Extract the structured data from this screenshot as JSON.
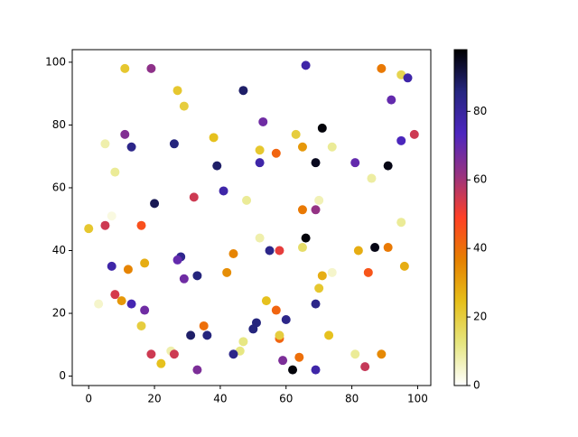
{
  "chart_data": {
    "type": "scatter",
    "x": [
      11,
      19,
      66,
      89,
      95,
      97,
      27,
      47,
      29,
      92,
      53,
      71,
      11,
      38,
      63,
      99,
      5,
      13,
      26,
      74,
      95,
      65,
      52,
      57,
      69,
      52,
      81,
      91,
      39,
      8,
      86,
      41,
      32,
      48,
      70,
      20,
      65,
      69,
      7,
      95,
      0,
      5,
      16,
      66,
      52,
      65,
      87,
      91,
      82,
      55,
      58,
      44,
      28,
      27,
      17,
      7,
      12,
      42,
      85,
      96,
      74,
      71,
      33,
      29,
      70,
      54,
      8,
      10,
      13,
      3,
      69,
      17,
      57,
      60,
      51,
      16,
      35,
      50,
      31,
      36,
      58,
      58,
      73,
      47,
      46,
      25,
      19,
      26,
      44,
      81,
      89,
      64,
      59,
      22,
      84,
      33,
      62,
      69
    ],
    "values": [
      98,
      98,
      99,
      98,
      96,
      95,
      91,
      91,
      86,
      88,
      81,
      79,
      77,
      76,
      77,
      77,
      74,
      73,
      74,
      73,
      75,
      73,
      72,
      71,
      68,
      68,
      68,
      67,
      67,
      65,
      63,
      59,
      57,
      56,
      56,
      55,
      53,
      53,
      51,
      49,
      47,
      48,
      48,
      44,
      44,
      41,
      41,
      41,
      40,
      40,
      40,
      39,
      38,
      37,
      36,
      35,
      34,
      33,
      33,
      35,
      33,
      32,
      32,
      31,
      28,
      24,
      26,
      24,
      23,
      23,
      23,
      21,
      21,
      18,
      17,
      16,
      16,
      15,
      13,
      13,
      12,
      13,
      13,
      11,
      8,
      8,
      7,
      7,
      7,
      7,
      7,
      6,
      5,
      4,
      3,
      2,
      2,
      2
    ],
    "c": [
      22,
      63,
      78,
      38,
      18,
      78,
      22,
      88,
      20,
      70,
      68,
      97,
      65,
      24,
      20,
      55,
      8,
      84,
      86,
      10,
      74,
      32,
      22,
      42,
      95,
      78,
      70,
      96,
      88,
      10,
      9,
      78,
      55,
      10,
      7,
      90,
      38,
      62,
      3,
      10,
      22,
      55,
      46,
      97,
      8,
      15,
      96,
      38,
      28,
      84,
      52,
      36,
      83,
      70,
      28,
      78,
      36,
      34,
      45,
      28,
      5,
      28,
      86,
      68,
      22,
      24,
      54,
      32,
      76,
      5,
      84,
      68,
      42,
      84,
      86,
      20,
      40,
      86,
      88,
      86,
      42,
      20,
      24,
      12,
      12,
      8,
      55,
      55,
      84,
      10,
      35,
      40,
      66,
      24,
      56,
      66,
      97,
      78
    ],
    "colormap": [
      "#ffffff",
      "#e6e680",
      "#e6bf1a",
      "#e68000",
      "#ff4026",
      "#993380",
      "#4d26bf",
      "#262680",
      "#000000"
    ],
    "xlim": [
      -5,
      104
    ],
    "ylim": [
      -3,
      104
    ],
    "xticks": [
      0,
      20,
      40,
      60,
      80,
      100
    ],
    "yticks": [
      0,
      20,
      40,
      60,
      80,
      100
    ],
    "clim": [
      0,
      98
    ],
    "cticks": [
      0,
      20,
      40,
      60,
      80
    ]
  }
}
